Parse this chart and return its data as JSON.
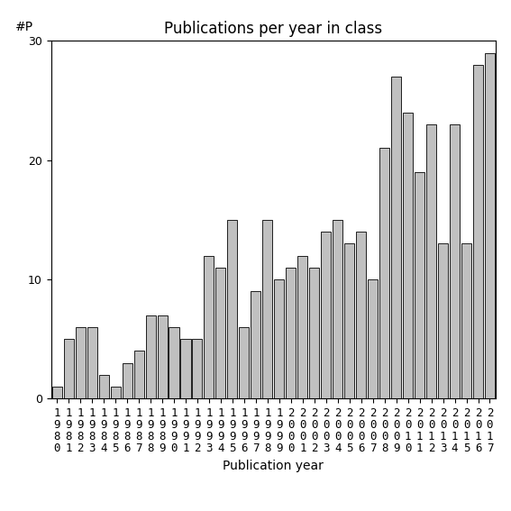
{
  "title": "Publications per year in class",
  "xlabel": "Publication year",
  "ylabel": "#P",
  "years": [
    1980,
    1981,
    1982,
    1983,
    1984,
    1985,
    1986,
    1987,
    1988,
    1989,
    1990,
    1991,
    1992,
    1993,
    1994,
    1995,
    1996,
    1997,
    1998,
    1999,
    2000,
    2001,
    2002,
    2003,
    2004,
    2005,
    2006,
    2007,
    2008,
    2009,
    2010,
    2011,
    2012,
    2013,
    2014,
    2015,
    2016,
    2017
  ],
  "values": [
    1,
    5,
    6,
    6,
    2,
    1,
    3,
    4,
    7,
    7,
    6,
    5,
    5,
    12,
    11,
    15,
    6,
    9,
    15,
    10,
    11,
    12,
    11,
    14,
    15,
    13,
    14,
    10,
    21,
    27,
    24,
    19,
    23,
    13,
    23,
    13,
    28,
    29
  ],
  "bar_color": "#c0c0c0",
  "bar_edgecolor": "#000000",
  "ylim": [
    0,
    30
  ],
  "yticks": [
    0,
    10,
    20,
    30
  ],
  "bg_color": "#ffffff",
  "title_fontsize": 12,
  "axis_fontsize": 10,
  "tick_fontsize": 9
}
